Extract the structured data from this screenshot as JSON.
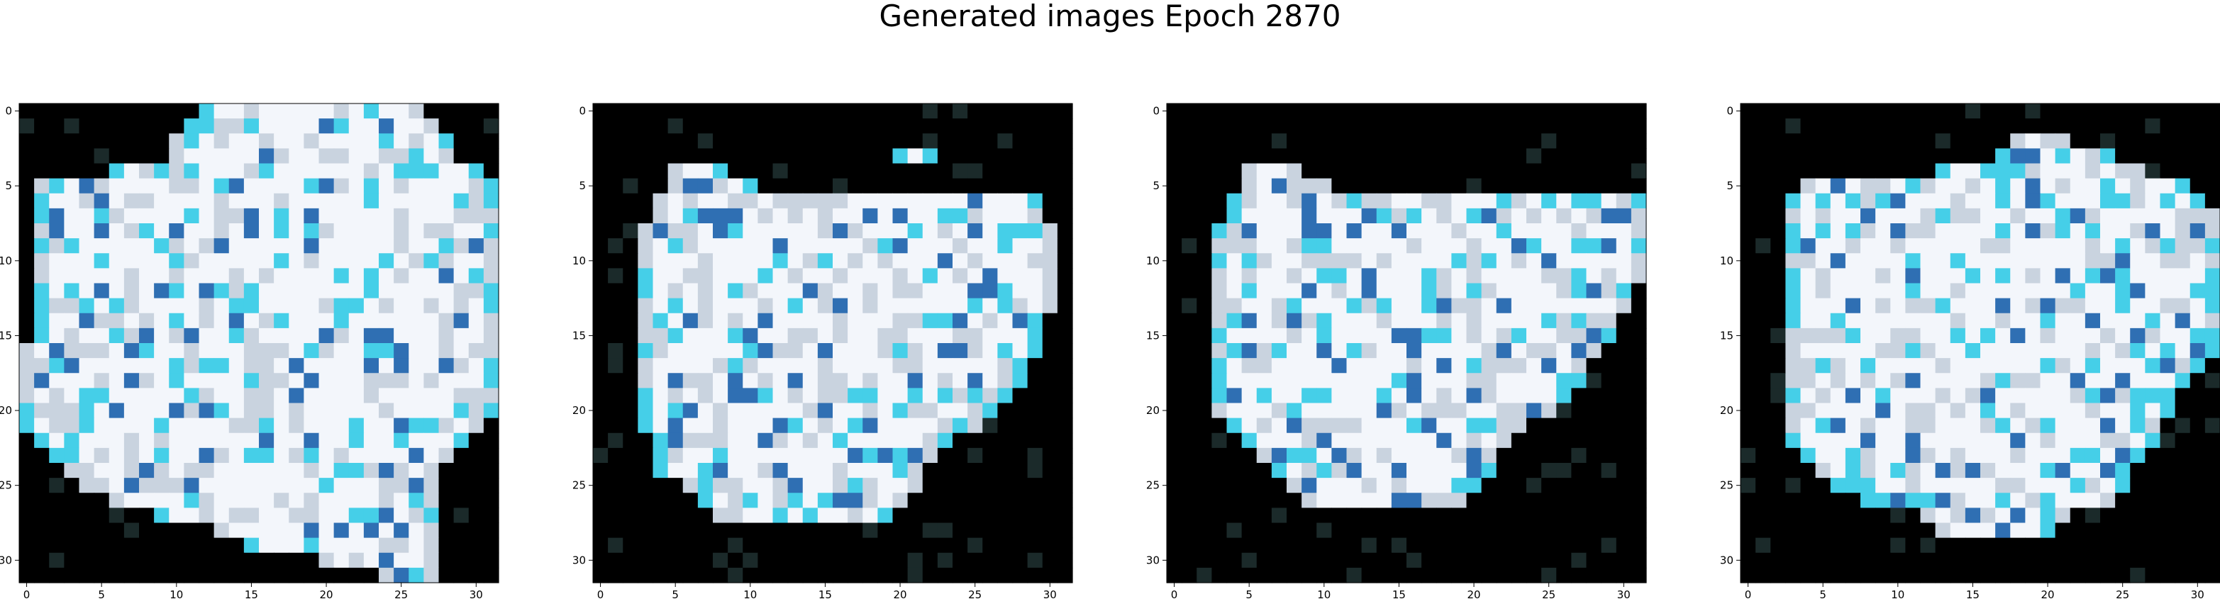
{
  "title": "Generated images Epoch 2870",
  "chart_data": [
    {
      "type": "heatmap",
      "content": "generated RGB image (32x32 pixels)",
      "grid": false,
      "xlim": [
        0,
        31
      ],
      "ylim": [
        31,
        0
      ],
      "xticks": [
        0,
        5,
        10,
        15,
        20,
        25,
        30
      ],
      "yticks": [
        0,
        5,
        10,
        15,
        20,
        25,
        30
      ],
      "image": {
        "size": 32,
        "dominant_colors": [
          "#000000",
          "#f3f6fb",
          "#c9d3df",
          "#45cfe8",
          "#2f6fb3"
        ],
        "shape_rows": [
          [
            12,
            26
          ],
          [
            11,
            27
          ],
          [
            10,
            28
          ],
          [
            10,
            28
          ],
          [
            6,
            30
          ],
          [
            1,
            31
          ],
          [
            1,
            31
          ],
          [
            1,
            31
          ],
          [
            1,
            31
          ],
          [
            1,
            31
          ],
          [
            1,
            31
          ],
          [
            1,
            31
          ],
          [
            1,
            31
          ],
          [
            1,
            31
          ],
          [
            1,
            31
          ],
          [
            1,
            31
          ],
          [
            0,
            31
          ],
          [
            0,
            31
          ],
          [
            0,
            31
          ],
          [
            0,
            31
          ],
          [
            0,
            31
          ],
          [
            0,
            30
          ],
          [
            1,
            29
          ],
          [
            2,
            28
          ],
          [
            3,
            27
          ],
          [
            4,
            27
          ],
          [
            6,
            27
          ],
          [
            9,
            27
          ],
          [
            13,
            27
          ],
          [
            15,
            27
          ],
          [
            20,
            27
          ],
          [
            24,
            27
          ]
        ]
      }
    },
    {
      "type": "heatmap",
      "content": "generated RGB image (32x32 pixels)",
      "grid": false,
      "xlim": [
        0,
        31
      ],
      "ylim": [
        31,
        0
      ],
      "xticks": [
        0,
        5,
        10,
        15,
        20,
        25,
        30
      ],
      "yticks": [
        0,
        5,
        10,
        15,
        20,
        25,
        30
      ],
      "image": {
        "size": 32,
        "dominant_colors": [
          "#000000",
          "#f3f6fb",
          "#c9d3df",
          "#45cfe8",
          "#2f6fb3"
        ],
        "shape_rows": [
          [
            -1,
            -1
          ],
          [
            -1,
            -1
          ],
          [
            -1,
            -1
          ],
          [
            20,
            22
          ],
          [
            5,
            8
          ],
          [
            5,
            10
          ],
          [
            4,
            29
          ],
          [
            4,
            29
          ],
          [
            3,
            30
          ],
          [
            3,
            30
          ],
          [
            3,
            30
          ],
          [
            3,
            30
          ],
          [
            3,
            30
          ],
          [
            3,
            30
          ],
          [
            3,
            29
          ],
          [
            3,
            29
          ],
          [
            3,
            29
          ],
          [
            3,
            28
          ],
          [
            3,
            28
          ],
          [
            3,
            27
          ],
          [
            3,
            26
          ],
          [
            3,
            25
          ],
          [
            4,
            23
          ],
          [
            4,
            22
          ],
          [
            4,
            21
          ],
          [
            6,
            21
          ],
          [
            7,
            20
          ],
          [
            8,
            19
          ],
          [
            -1,
            -1
          ],
          [
            -1,
            -1
          ],
          [
            -1,
            -1
          ],
          [
            -1,
            -1
          ]
        ]
      }
    },
    {
      "type": "heatmap",
      "content": "generated RGB image (32x32 pixels)",
      "grid": false,
      "xlim": [
        0,
        31
      ],
      "ylim": [
        31,
        0
      ],
      "xticks": [
        0,
        5,
        10,
        15,
        20,
        25,
        30
      ],
      "yticks": [
        0,
        5,
        10,
        15,
        20,
        25,
        30
      ],
      "image": {
        "size": 32,
        "dominant_colors": [
          "#000000",
          "#f3f6fb",
          "#c9d3df",
          "#45cfe8",
          "#2f6fb3"
        ],
        "shape_rows": [
          [
            -1,
            -1
          ],
          [
            -1,
            -1
          ],
          [
            -1,
            -1
          ],
          [
            -1,
            -1
          ],
          [
            5,
            8
          ],
          [
            5,
            10
          ],
          [
            4,
            31
          ],
          [
            4,
            31
          ],
          [
            3,
            31
          ],
          [
            3,
            31
          ],
          [
            3,
            31
          ],
          [
            3,
            31
          ],
          [
            3,
            30
          ],
          [
            3,
            30
          ],
          [
            3,
            29
          ],
          [
            3,
            29
          ],
          [
            3,
            28
          ],
          [
            3,
            27
          ],
          [
            3,
            27
          ],
          [
            3,
            26
          ],
          [
            3,
            25
          ],
          [
            4,
            23
          ],
          [
            5,
            22
          ],
          [
            6,
            21
          ],
          [
            7,
            21
          ],
          [
            8,
            20
          ],
          [
            9,
            19
          ],
          [
            -1,
            -1
          ],
          [
            -1,
            -1
          ],
          [
            -1,
            -1
          ],
          [
            -1,
            -1
          ],
          [
            -1,
            -1
          ]
        ]
      }
    },
    {
      "type": "heatmap",
      "content": "generated RGB image (32x32 pixels)",
      "grid": false,
      "xlim": [
        0,
        31
      ],
      "ylim": [
        31,
        0
      ],
      "xticks": [
        0,
        5,
        10,
        15,
        20,
        25,
        30
      ],
      "yticks": [
        0,
        5,
        10,
        15,
        20,
        25,
        30
      ],
      "image": {
        "size": 32,
        "dominant_colors": [
          "#000000",
          "#f3f6fb",
          "#c9d3df",
          "#45cfe8",
          "#2f6fb3"
        ],
        "shape_rows": [
          [
            -1,
            -1
          ],
          [
            -1,
            -1
          ],
          [
            18,
            21
          ],
          [
            17,
            24
          ],
          [
            13,
            26
          ],
          [
            4,
            29
          ],
          [
            3,
            30
          ],
          [
            3,
            31
          ],
          [
            3,
            31
          ],
          [
            3,
            31
          ],
          [
            3,
            31
          ],
          [
            3,
            31
          ],
          [
            3,
            31
          ],
          [
            3,
            31
          ],
          [
            3,
            31
          ],
          [
            3,
            31
          ],
          [
            3,
            31
          ],
          [
            3,
            30
          ],
          [
            3,
            29
          ],
          [
            3,
            28
          ],
          [
            3,
            28
          ],
          [
            3,
            27
          ],
          [
            3,
            27
          ],
          [
            4,
            26
          ],
          [
            5,
            25
          ],
          [
            6,
            25
          ],
          [
            8,
            24
          ],
          [
            12,
            21
          ],
          [
            13,
            20
          ],
          [
            -1,
            -1
          ],
          [
            -1,
            -1
          ],
          [
            -1,
            -1
          ]
        ]
      }
    }
  ]
}
